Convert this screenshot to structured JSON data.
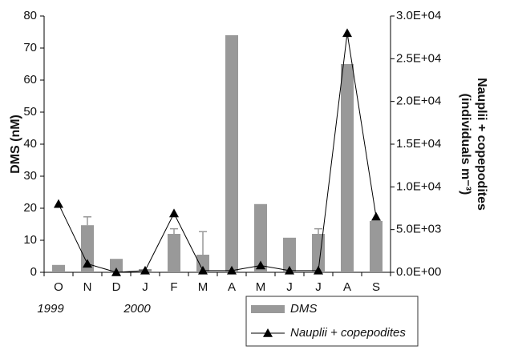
{
  "chart_data": {
    "type": "bar",
    "categories": [
      "O",
      "N",
      "D",
      "J",
      "F",
      "M",
      "A",
      "M",
      "J",
      "J",
      "A",
      "S"
    ],
    "annotations": [
      {
        "text": "1999",
        "category": 0
      },
      {
        "text": "2000",
        "category": 3
      }
    ],
    "y_label": "DMS (nM)",
    "y2_label": [
      "Nauplii + copepodites",
      "(individuals m⁻³)"
    ],
    "ylim": [
      0,
      80
    ],
    "yticks": [
      0,
      10,
      20,
      30,
      40,
      50,
      60,
      70,
      80
    ],
    "y2lim": [
      0,
      30000
    ],
    "y2ticks": [
      {
        "value": 0,
        "label": "0.0E+00"
      },
      {
        "value": 5000,
        "label": "5.0E+03"
      },
      {
        "value": 10000,
        "label": "1.0E+04"
      },
      {
        "value": 15000,
        "label": "1.5E+04"
      },
      {
        "value": 20000,
        "label": "2.0E+04"
      },
      {
        "value": 25000,
        "label": "2.5E+04"
      },
      {
        "value": 30000,
        "label": "3.0E+04"
      }
    ],
    "series": [
      {
        "name": "DMS",
        "type": "bar",
        "color": "#999999",
        "values": [
          2.3,
          14.7,
          4.2,
          1,
          12,
          5.5,
          74,
          21.3,
          10.8,
          12,
          65,
          16
        ],
        "errors": [
          null,
          2.6,
          null,
          null,
          1.6,
          7.2,
          null,
          null,
          null,
          1.6,
          null,
          null
        ]
      },
      {
        "name": "Nauplii + copepodites",
        "type": "line",
        "color": "#000000",
        "axis": "y2",
        "values": [
          8000,
          1000,
          0,
          200,
          6900,
          200,
          200,
          800,
          200,
          200,
          28000,
          6500
        ]
      }
    ],
    "legend": "bottom-right"
  }
}
